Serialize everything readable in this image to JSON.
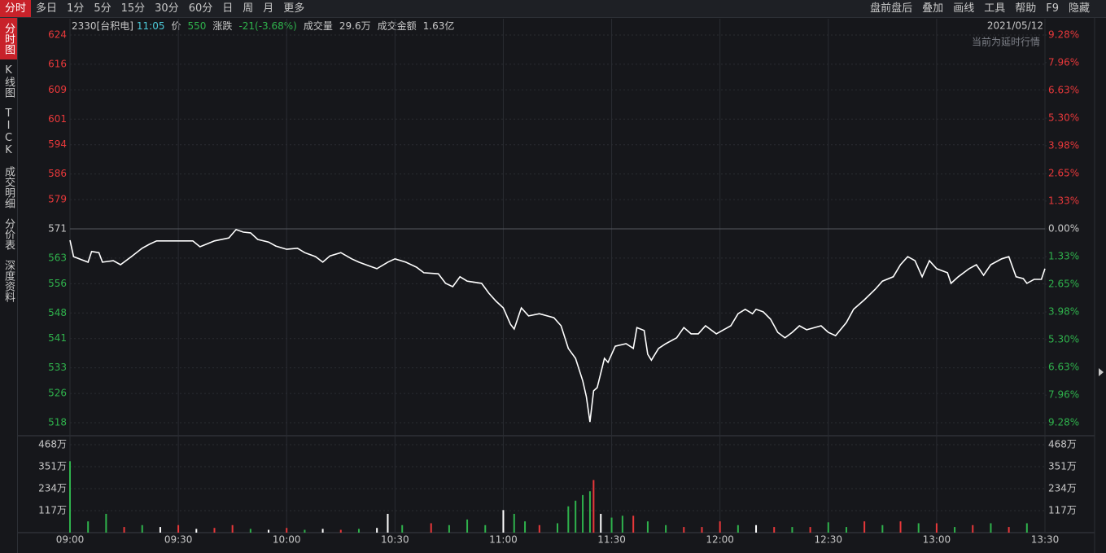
{
  "toolbar": {
    "tabs": [
      "分时",
      "多日",
      "1分",
      "5分",
      "15分",
      "30分",
      "60分",
      "日",
      "周",
      "月",
      "更多"
    ],
    "right": [
      "盘前盘后",
      "叠加",
      "画线",
      "工具",
      "帮助",
      "F9",
      "隐藏"
    ]
  },
  "sidebar": [
    "分时图",
    "K线图",
    "TICK",
    "成交明细",
    "分价表",
    "深度资料"
  ],
  "header": {
    "symbol": "2330[台积电]",
    "time": "11:05",
    "price_label": "价",
    "price": "550",
    "change_label": "涨跌",
    "change": "-21(-3.68%)",
    "volume_label": "成交量",
    "volume": "29.6万",
    "amount_label": "成交金额",
    "amount": "1.63亿",
    "date": "2021/05/12",
    "notice": "当前为延时行情"
  },
  "chart_data": [
    {
      "type": "line",
      "up_color": "#e8383a",
      "down_color": "#2fb24c",
      "flat_color": "#c8c8c8",
      "grid": true,
      "x": [
        "09:00",
        "09:01",
        "09:05",
        "09:06",
        "09:08",
        "09:09",
        "09:12",
        "09:14",
        "09:17",
        "09:20",
        "09:22",
        "09:24",
        "09:30",
        "09:34",
        "09:36",
        "09:40",
        "09:44",
        "09:46",
        "09:48",
        "09:50",
        "09:52",
        "09:55",
        "09:57",
        "10:00",
        "10:03",
        "10:05",
        "10:08",
        "10:10",
        "10:12",
        "10:15",
        "10:18",
        "10:20",
        "10:23",
        "10:25",
        "10:28",
        "10:30",
        "10:33",
        "10:36",
        "10:38",
        "10:42",
        "10:44",
        "10:46",
        "10:48",
        "10:50",
        "10:54",
        "10:56",
        "10:58",
        "11:00",
        "11:02",
        "11:03",
        "11:05",
        "11:07",
        "11:10",
        "11:14",
        "11:16",
        "11:18",
        "11:20",
        "11:22",
        "11:23",
        "11:24",
        "11:25",
        "11:26",
        "11:28",
        "11:29",
        "11:31",
        "11:34",
        "11:36",
        "11:37",
        "11:39",
        "11:40",
        "11:41",
        "11:43",
        "11:45",
        "11:48",
        "11:50",
        "11:52",
        "11:54",
        "11:56",
        "11:59",
        "12:03",
        "12:05",
        "12:07",
        "12:09",
        "12:10",
        "12:12",
        "12:14",
        "12:16",
        "12:18",
        "12:20",
        "12:22",
        "12:24",
        "12:28",
        "12:30",
        "12:32",
        "12:35",
        "12:37",
        "12:40",
        "12:43",
        "12:45",
        "12:48",
        "12:50",
        "12:52",
        "12:54",
        "12:56",
        "12:58",
        "13:00",
        "13:03",
        "13:04",
        "13:06",
        "13:09",
        "13:11",
        "13:13",
        "13:15",
        "13:18",
        "13:20",
        "13:22",
        "13:24",
        "13:25",
        "13:27",
        "13:29",
        "13:30"
      ],
      "series": [
        {
          "color": "#ffffff",
          "values": [
            567.9,
            563.4,
            561.9,
            564.8,
            564.5,
            561.9,
            562.3,
            561.2,
            563.4,
            565.7,
            566.8,
            567.7,
            567.7,
            567.7,
            566.1,
            567.7,
            568.5,
            570.8,
            570.1,
            569.9,
            568.1,
            567.4,
            566.3,
            565.4,
            565.7,
            564.5,
            563.4,
            561.9,
            563.6,
            564.5,
            562.8,
            561.9,
            560.8,
            560.1,
            561.9,
            562.8,
            561.9,
            560.5,
            559.0,
            558.7,
            556.1,
            555.2,
            557.9,
            556.7,
            556.1,
            553.4,
            551.2,
            549.4,
            544.9,
            543.6,
            549.4,
            547.2,
            547.8,
            546.7,
            544.5,
            538.3,
            535.6,
            529.4,
            525.1,
            518.2,
            526.7,
            527.6,
            535.6,
            534.5,
            538.9,
            539.6,
            538.3,
            544.0,
            543.2,
            536.7,
            535.1,
            538.3,
            539.6,
            541.2,
            544.0,
            542.3,
            542.3,
            544.5,
            542.3,
            544.5,
            547.8,
            549.0,
            547.8,
            549.0,
            548.3,
            546.3,
            542.7,
            541.2,
            542.7,
            544.5,
            543.4,
            544.5,
            542.7,
            541.8,
            545.4,
            549.0,
            551.6,
            554.5,
            556.7,
            557.9,
            561.2,
            563.4,
            562.3,
            557.9,
            562.3,
            560.1,
            559.0,
            556.1,
            557.9,
            560.1,
            561.2,
            558.3,
            561.2,
            562.8,
            563.4,
            557.9,
            557.4,
            556.1,
            557.2,
            557.2,
            560.1
          ]
        }
      ],
      "xlim": [
        "09:00",
        "13:30"
      ],
      "xticks": [
        "09:00",
        "09:30",
        "10:00",
        "10:30",
        "11:00",
        "11:30",
        "12:00",
        "12:30",
        "13:00",
        "13:30"
      ],
      "ylim": [
        518,
        624
      ],
      "yticks": [
        624,
        616,
        609,
        601,
        594,
        586,
        579,
        571,
        563,
        556,
        548,
        541,
        533,
        526,
        518
      ],
      "y2lim": [
        -9.28,
        9.28
      ],
      "y2ticks": [
        {
          "value": 9.28,
          "label": "9.28%"
        },
        {
          "value": 7.96,
          "label": "7.96%"
        },
        {
          "value": 6.63,
          "label": "6.63%"
        },
        {
          "value": 5.3,
          "label": "5.30%"
        },
        {
          "value": 3.98,
          "label": "3.98%"
        },
        {
          "value": 2.65,
          "label": "2.65%"
        },
        {
          "value": 1.33,
          "label": "1.33%"
        },
        {
          "value": 0,
          "label": "0.00%"
        },
        {
          "value": -1.33,
          "label": "1.33%"
        },
        {
          "value": -2.65,
          "label": "2.65%"
        },
        {
          "value": -3.98,
          "label": "3.98%"
        },
        {
          "value": -5.3,
          "label": "5.30%"
        },
        {
          "value": -6.63,
          "label": "6.63%"
        },
        {
          "value": -7.96,
          "label": "7.96%"
        },
        {
          "value": -9.28,
          "label": "9.28%"
        }
      ]
    },
    {
      "type": "bar",
      "ylim": [
        0,
        4680000
      ],
      "yticks": [
        {
          "value": 4680000,
          "label": "468万"
        },
        {
          "value": 3510000,
          "label": "351万"
        },
        {
          "value": 2340000,
          "label": "234万"
        },
        {
          "value": 1170000,
          "label": "117万"
        }
      ],
      "x": [
        "09:00",
        "09:05",
        "09:10",
        "09:15",
        "09:20",
        "09:25",
        "09:30",
        "09:35",
        "09:40",
        "09:45",
        "09:50",
        "09:55",
        "10:00",
        "10:05",
        "10:10",
        "10:15",
        "10:20",
        "10:25",
        "10:28",
        "10:32",
        "10:40",
        "10:45",
        "10:50",
        "10:55",
        "11:00",
        "11:03",
        "11:06",
        "11:10",
        "11:15",
        "11:18",
        "11:20",
        "11:22",
        "11:24",
        "11:25",
        "11:27",
        "11:30",
        "11:33",
        "11:36",
        "11:40",
        "11:45",
        "11:50",
        "11:55",
        "12:00",
        "12:05",
        "12:10",
        "12:15",
        "12:20",
        "12:25",
        "12:30",
        "12:35",
        "12:40",
        "12:45",
        "12:50",
        "12:55",
        "13:00",
        "13:05",
        "13:10",
        "13:15",
        "13:20",
        "13:25"
      ],
      "values": [
        3800000,
        600000,
        1000000,
        300000,
        400000,
        300000,
        400000,
        200000,
        250000,
        400000,
        200000,
        150000,
        250000,
        150000,
        200000,
        150000,
        200000,
        250000,
        1000000,
        400000,
        500000,
        400000,
        700000,
        400000,
        1200000,
        1000000,
        600000,
        400000,
        500000,
        1400000,
        1700000,
        2000000,
        2200000,
        2800000,
        1000000,
        800000,
        900000,
        900000,
        600000,
        400000,
        300000,
        300000,
        600000,
        400000,
        400000,
        300000,
        300000,
        300000,
        550000,
        300000,
        600000,
        400000,
        600000,
        500000,
        500000,
        300000,
        400000,
        500000,
        300000,
        500000
      ],
      "colors": [
        "#2fb24c",
        "#2fb24c",
        "#2fb24c",
        "#e8383a",
        "#2fb24c",
        "#ffffff",
        "#e8383a",
        "#ffffff",
        "#e8383a",
        "#e8383a",
        "#2fb24c",
        "#ffffff",
        "#e8383a",
        "#2fb24c",
        "#ffffff",
        "#e8383a",
        "#2fb24c",
        "#ffffff",
        "#ffffff",
        "#2fb24c",
        "#e8383a",
        "#2fb24c",
        "#2fb24c",
        "#2fb24c",
        "#ffffff",
        "#2fb24c",
        "#2fb24c",
        "#e8383a",
        "#2fb24c",
        "#2fb24c",
        "#2fb24c",
        "#2fb24c",
        "#2fb24c",
        "#e8383a",
        "#ffffff",
        "#2fb24c",
        "#2fb24c",
        "#e8383a",
        "#2fb24c",
        "#2fb24c",
        "#e8383a",
        "#e8383a",
        "#e8383a",
        "#2fb24c",
        "#ffffff",
        "#e8383a",
        "#2fb24c",
        "#e8383a",
        "#2fb24c",
        "#2fb24c",
        "#e8383a",
        "#2fb24c",
        "#e8383a",
        "#2fb24c",
        "#e8383a",
        "#2fb24c",
        "#e8383a",
        "#2fb24c",
        "#e8383a",
        "#2fb24c"
      ]
    }
  ]
}
